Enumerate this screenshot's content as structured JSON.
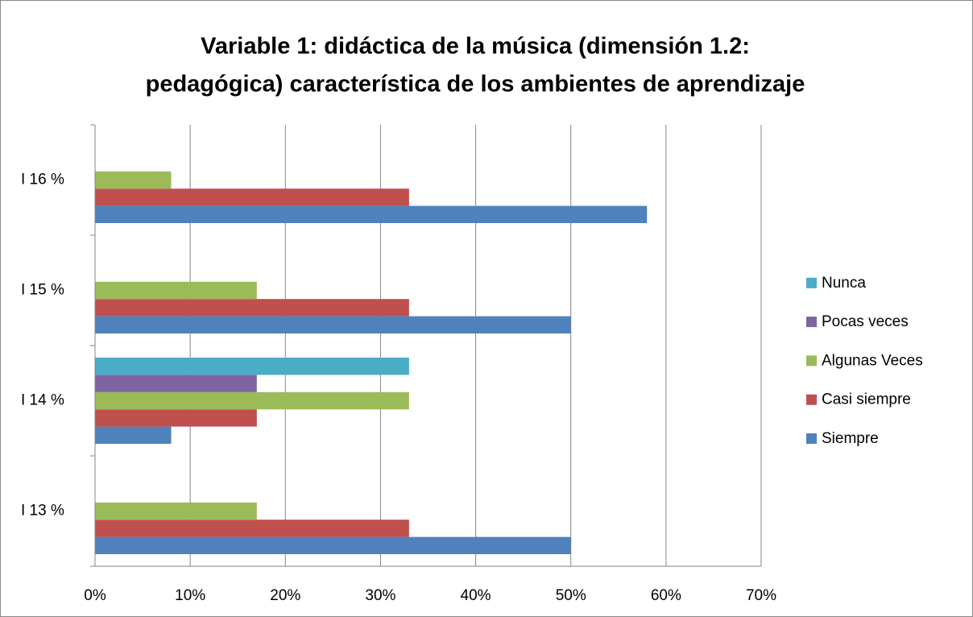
{
  "chart_data": {
    "type": "hbar",
    "title": [
      "Variable 1: didáctica de la música (dimensión 1.2:",
      "pedagógica) característica de los ambientes de aprendizaje"
    ],
    "categories": [
      "I 13 %",
      "I 14 %",
      "I 15 %",
      "I 16 %"
    ],
    "series": [
      {
        "name": "Siempre",
        "color": "#4f81bd",
        "values": [
          50,
          8,
          50,
          58
        ]
      },
      {
        "name": "Casi siempre",
        "color": "#c0504d",
        "values": [
          33,
          17,
          33,
          33
        ]
      },
      {
        "name": "Algunas Veces",
        "color": "#9bbb59",
        "values": [
          17,
          33,
          17,
          8
        ]
      },
      {
        "name": "Pocas veces",
        "color": "#8064a2",
        "values": [
          0,
          17,
          0,
          0
        ]
      },
      {
        "name": "Nunca",
        "color": "#4bacc6",
        "values": [
          0,
          33,
          0,
          0
        ]
      }
    ],
    "xlim": [
      0,
      70
    ],
    "xticks": [
      {
        "value": 0,
        "label": "0%"
      },
      {
        "value": 10,
        "label": "10%"
      },
      {
        "value": 20,
        "label": "20%"
      },
      {
        "value": 30,
        "label": "30%"
      },
      {
        "value": 40,
        "label": "40%"
      },
      {
        "value": 50,
        "label": "50%"
      },
      {
        "value": 60,
        "label": "60%"
      },
      {
        "value": 70,
        "label": "70%"
      }
    ],
    "grid": true,
    "legend": "right"
  }
}
